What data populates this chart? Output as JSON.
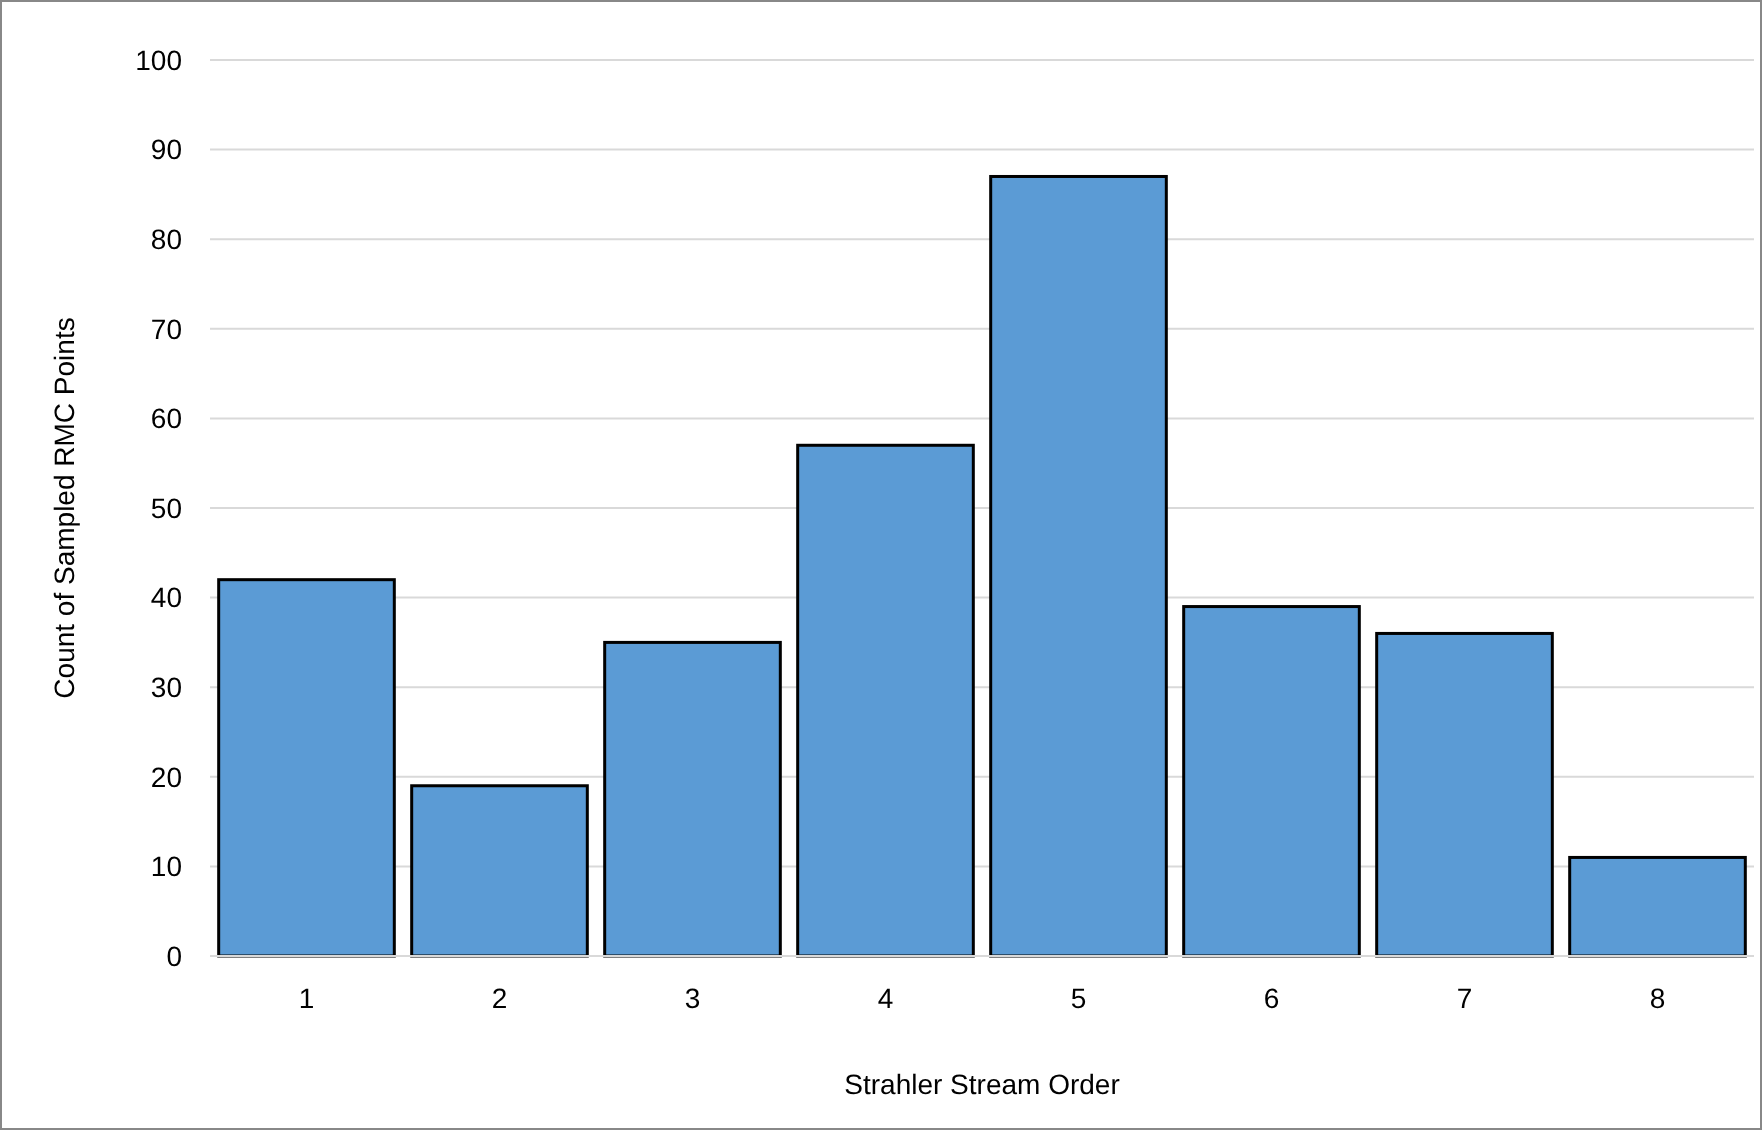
{
  "chart_data": {
    "type": "bar",
    "xlabel": "Strahler Stream Order",
    "ylabel": "Count of Sampled RMC Points",
    "categories": [
      "1",
      "2",
      "3",
      "4",
      "5",
      "6",
      "7",
      "8"
    ],
    "values": [
      42,
      19,
      35,
      57,
      87,
      39,
      36,
      11
    ],
    "color": "#5b9bd5",
    "ylim": [
      0,
      100
    ],
    "yticks": [
      0,
      10,
      20,
      30,
      40,
      50,
      60,
      70,
      80,
      90,
      100
    ],
    "grid": "y"
  }
}
